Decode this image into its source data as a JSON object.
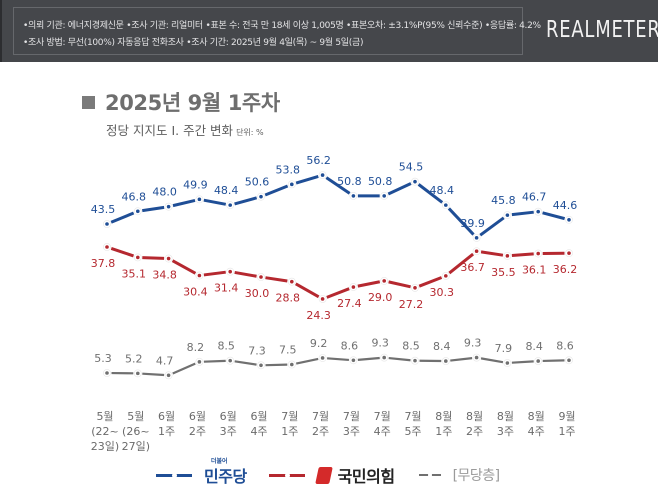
{
  "header": {
    "survey_line_1": "•의뢰 기관: 에너지경제신문  •조사 기관: 리얼미터 •표본 수: 전국 만 18세 이상 1,005명 •표본오차: ±3.1%P(95% 신뢰수준) •응답률: 4.2%",
    "survey_line_2": "•조사 방법: 무선(100%) 자동응답 전화조사 •조사 기간: 2025년 9월 4일(목) ~ 9월 5일(금)",
    "brand": "REALMETER"
  },
  "title": "2025년 9월 1주차",
  "subtitle": "정당 지지도 Ⅰ. 주간 변화",
  "unit": "단위: %",
  "colors": {
    "democratic": "#1f4e96",
    "ppp": "#b5282f",
    "independent": "#707070"
  },
  "chart_data": {
    "type": "line",
    "title": "정당 지지도 Ⅰ. 주간 변화",
    "xlabel": "",
    "ylabel": "단위: %",
    "grid": false,
    "legend_position": "bottom",
    "categories": [
      [
        "5월",
        "(22~",
        "23일)"
      ],
      [
        "5월",
        "(26~",
        "27일)"
      ],
      [
        "6월",
        "1주"
      ],
      [
        "6월",
        "2주"
      ],
      [
        "6월",
        "3주"
      ],
      [
        "6월",
        "4주"
      ],
      [
        "7월",
        "1주"
      ],
      [
        "7월",
        "2주"
      ],
      [
        "7월",
        "3주"
      ],
      [
        "7월",
        "4주"
      ],
      [
        "7월",
        "5주"
      ],
      [
        "8월",
        "1주"
      ],
      [
        "8월",
        "2주"
      ],
      [
        "8월",
        "3주"
      ],
      [
        "8월",
        "4주"
      ],
      [
        "9월",
        "1주"
      ]
    ],
    "series": [
      {
        "name": "더불어민주당",
        "legend_label": "민주당",
        "legend_small": "더불어",
        "color_key": "democratic",
        "values": [
          43.5,
          46.8,
          48.0,
          49.9,
          48.4,
          50.6,
          53.8,
          56.2,
          50.8,
          50.8,
          54.5,
          48.4,
          39.9,
          45.8,
          46.7,
          44.6
        ],
        "labels": [
          "43.5",
          "46.8",
          "48.0",
          "49.9",
          "48.4",
          "50.6",
          "53.8",
          "56.2",
          "50.8",
          "50.8",
          "54.5",
          "48.4",
          "39.9",
          "45.8",
          "46.7",
          "44.6"
        ]
      },
      {
        "name": "국민의힘",
        "legend_label": "국민의힘",
        "color_key": "ppp",
        "values": [
          37.8,
          35.1,
          34.8,
          30.4,
          31.4,
          30.0,
          28.8,
          24.3,
          27.4,
          29.0,
          27.2,
          30.3,
          36.7,
          35.5,
          36.1,
          36.2
        ],
        "labels": [
          "37.8",
          "35.1",
          "34.8",
          "30.4",
          "31.4",
          "30.0",
          "28.8",
          "24.3",
          "27.4",
          "29.0",
          "27.2",
          "30.3",
          "36.7",
          "35.5",
          "36.1",
          "36.2"
        ]
      },
      {
        "name": "무당층",
        "legend_label": "[무당층]",
        "color_key": "independent",
        "values": [
          5.3,
          5.2,
          4.7,
          8.2,
          8.5,
          7.3,
          7.5,
          9.2,
          8.6,
          9.3,
          8.5,
          8.4,
          9.3,
          7.9,
          8.4,
          8.6
        ],
        "labels": [
          "5.3",
          "5.2",
          "4.7",
          "8.2",
          "8.5",
          "7.3",
          "7.5",
          "9.2",
          "8.6",
          "9.3",
          "8.5",
          "8.4",
          "9.3",
          "7.9",
          "8.4",
          "8.6"
        ]
      }
    ]
  }
}
